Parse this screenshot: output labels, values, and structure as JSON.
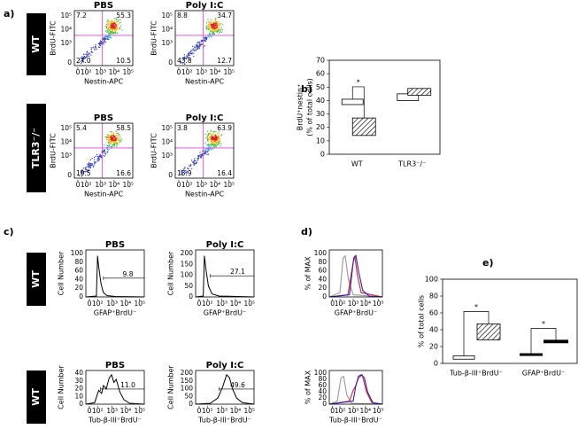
{
  "panels": {
    "a": {
      "label": "a)",
      "row_labels": [
        "WT",
        "TLR3⁻/⁻"
      ],
      "column_titles": [
        "PBS",
        "Poly I:C"
      ],
      "y_label": "BrdU-FITC",
      "x_label": "Nestin-APC",
      "x_ticks": [
        "0",
        "10²",
        "10³",
        "10⁴",
        "10⁵"
      ],
      "y_ticks": [
        "0",
        "10³",
        "10⁴",
        "10⁵"
      ],
      "plots": [
        {
          "quadrants": [
            "7.2",
            "55.3",
            "27.0",
            "10.5"
          ]
        },
        {
          "quadrants": [
            "8.8",
            "34.7",
            "43.8",
            "12.7"
          ]
        },
        {
          "quadrants": [
            "5.4",
            "58.5",
            "19.5",
            "16.6"
          ]
        },
        {
          "quadrants": [
            "3.8",
            "63.9",
            "15.9",
            "16.4"
          ]
        }
      ]
    },
    "c": {
      "label": "c)",
      "row_labels": [
        "WT",
        "WT"
      ],
      "column_titles": [
        "PBS",
        "Poly I:C"
      ],
      "y_label": "Cell Number",
      "x_labels": [
        "GFAP⁺BrdU⁻",
        "Tub-β-III⁺BrdU⁻"
      ],
      "x_ticks": [
        "0",
        "10²",
        "10³",
        "10⁴",
        "10⁵"
      ],
      "plots": [
        {
          "y_ticks": [
            "0",
            "20",
            "40",
            "60",
            "80",
            "100"
          ],
          "gate": "9.8"
        },
        {
          "y_ticks": [
            "0",
            "50",
            "100",
            "150",
            "200"
          ],
          "gate": "27.1"
        },
        {
          "y_ticks": [
            "0",
            "10",
            "20",
            "30",
            "40"
          ],
          "gate": "11.0"
        },
        {
          "y_ticks": [
            "0",
            "50",
            "100",
            "150",
            "200"
          ],
          "gate": "49.6"
        }
      ]
    },
    "d": {
      "label": "d)",
      "y_label": "% of MAX",
      "y_ticks": [
        "0",
        "20",
        "40",
        "60",
        "80",
        "100"
      ],
      "x_labels": [
        "GFAP⁺BrdU⁻",
        "Tub-β-III⁺BrdU⁻"
      ],
      "x_ticks": [
        "0",
        "10²",
        "10³",
        "10⁴",
        "10⁵"
      ]
    }
  },
  "chart_data": [
    {
      "type": "floating-bar",
      "panel_label": "b)",
      "ylabel": [
        "BrdU⁺nestin⁺",
        "(% of total cells)"
      ],
      "categories": [
        "WT",
        "TLR3⁻/⁻"
      ],
      "ylim": [
        0,
        70
      ],
      "yticks": [
        0,
        10,
        20,
        30,
        40,
        50,
        60,
        70
      ],
      "series": [
        {
          "color": "#ffffff",
          "hatch": false,
          "low": [
            37,
            40
          ],
          "high": [
            41,
            45
          ]
        },
        {
          "color": "#ffffff",
          "hatch": true,
          "low": [
            14,
            44
          ],
          "high": [
            27,
            49
          ]
        }
      ],
      "annotations": [
        "*"
      ]
    },
    {
      "type": "floating-bar",
      "panel_label": "e)",
      "ylabel": [
        "% of total cells"
      ],
      "categories": [
        "Tub-β-III⁺BrdU⁻",
        "GFAP⁺BrdU⁻"
      ],
      "ylim": [
        0,
        100
      ],
      "yticks": [
        0,
        20,
        40,
        60,
        80,
        100
      ],
      "series": [
        {
          "color": "#ffffff",
          "hatch": false,
          "low": [
            5,
            10
          ],
          "high": [
            9,
            11
          ]
        },
        {
          "color": "#ffffff",
          "hatch": true,
          "low": [
            28,
            25
          ],
          "high": [
            47,
            27
          ]
        }
      ],
      "annotations": [
        "*",
        "*"
      ]
    }
  ]
}
